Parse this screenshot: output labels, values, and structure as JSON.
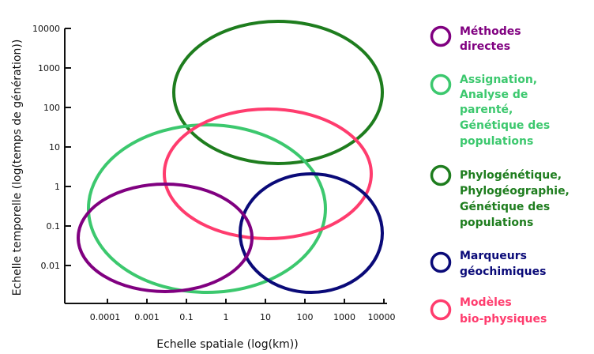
{
  "diagram": {
    "xlabel": "Echelle spatiale (log(km))",
    "ylabel": "Echelle temporelle (log(temps de génération))",
    "x_ticks": [
      "0.0001",
      "0.001",
      "0.1",
      "1",
      "10",
      "100",
      "1000",
      "10000"
    ],
    "y_ticks": [
      "10000",
      "1000",
      "100",
      "10",
      "1",
      "0.1",
      "0.01"
    ]
  },
  "groups": [
    {
      "key": "methodes-directes",
      "color": "#800080",
      "label_lines": [
        "Méthodes",
        "directes"
      ]
    },
    {
      "key": "assignation",
      "color": "#3cc86e",
      "label_lines": [
        "Assignation,",
        "Analyse de",
        "parenté,",
        "Génétique des",
        "populations"
      ]
    },
    {
      "key": "phylogenetique",
      "color": "#1e7d1e",
      "label_lines": [
        "Phylogénétique,",
        "Phylogéographie,",
        "Génétique des",
        "populations"
      ]
    },
    {
      "key": "marqueurs",
      "color": "#0a0a78",
      "label_lines": [
        "Marqueurs",
        "géochimiques"
      ]
    },
    {
      "key": "modeles",
      "color": "#ff3c6e",
      "label_lines": [
        "Modèles",
        "bio-physiques"
      ]
    }
  ]
}
